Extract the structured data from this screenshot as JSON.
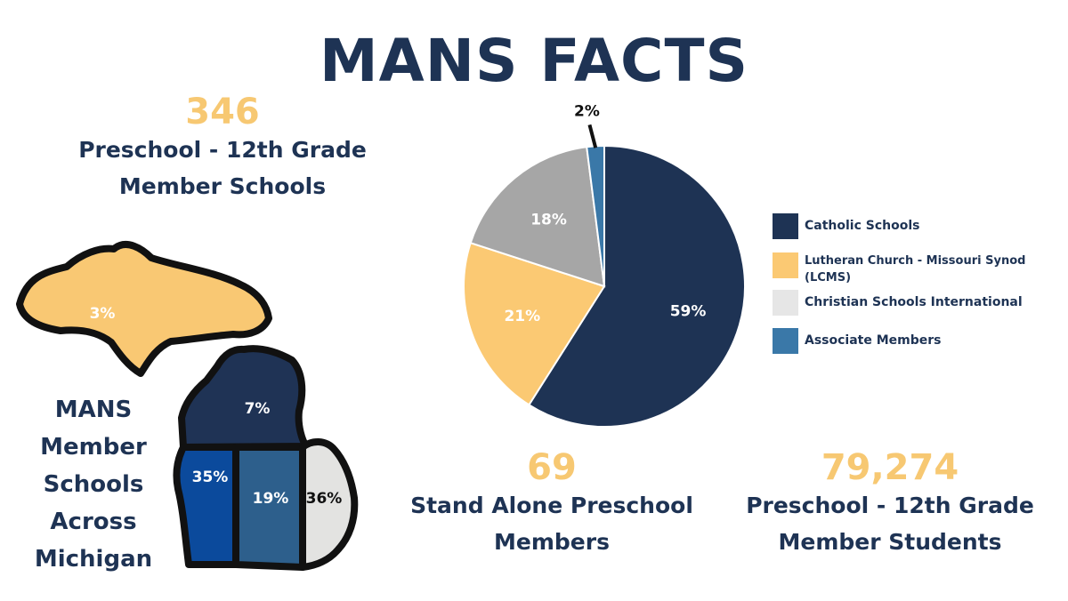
{
  "title": "MANS FACTS",
  "stats": {
    "member_schools": {
      "value": "346",
      "label_line1": "Preschool - 12th Grade",
      "label_line2": "Member Schools"
    },
    "preschool_members": {
      "value": "69",
      "label_line1": "Stand Alone Preschool",
      "label_line2": "Members"
    },
    "member_students": {
      "value": "79,274",
      "label_line1": "Preschool - 12th Grade",
      "label_line2": "Member Students"
    }
  },
  "map": {
    "caption": [
      "MANS",
      "Member",
      "Schools",
      "Across",
      "Michigan"
    ],
    "regions": [
      {
        "name": "upper-peninsula",
        "label": "3%",
        "color": "#f9c873"
      },
      {
        "name": "northern-lower",
        "label": "7%",
        "color": "#1f3355"
      },
      {
        "name": "west-lower",
        "label": "35%",
        "color": "#0b4a9c"
      },
      {
        "name": "central-lower",
        "label": "19%",
        "color": "#2d5f8c"
      },
      {
        "name": "east-lower",
        "label": "36%",
        "color": "#e3e3e1"
      }
    ]
  },
  "chart_data": {
    "type": "pie",
    "title": "",
    "slices": [
      {
        "name": "Catholic Schools",
        "value": 59,
        "label": "59%",
        "color": "#1e3354"
      },
      {
        "name": "Lutheran Church - Missouri Synod (LCMS)",
        "value": 21,
        "label": "21%",
        "color": "#fbc973"
      },
      {
        "name": "Christian Schools International",
        "value": 18,
        "label": "18%",
        "color": "#a6a6a6"
      },
      {
        "name": "Associate Members",
        "value": 2,
        "label": "2%",
        "color": "#3a78a8"
      }
    ],
    "legend": {
      "position": "right",
      "items": [
        {
          "label": "Catholic Schools",
          "color": "#1e3354"
        },
        {
          "label": "Lutheran Church - Missouri Synod (LCMS)",
          "color": "#fbc973"
        },
        {
          "label": "Christian Schools International",
          "color": "#e6e6e6"
        },
        {
          "label": "Associate Members",
          "color": "#3a78a8"
        }
      ]
    }
  }
}
